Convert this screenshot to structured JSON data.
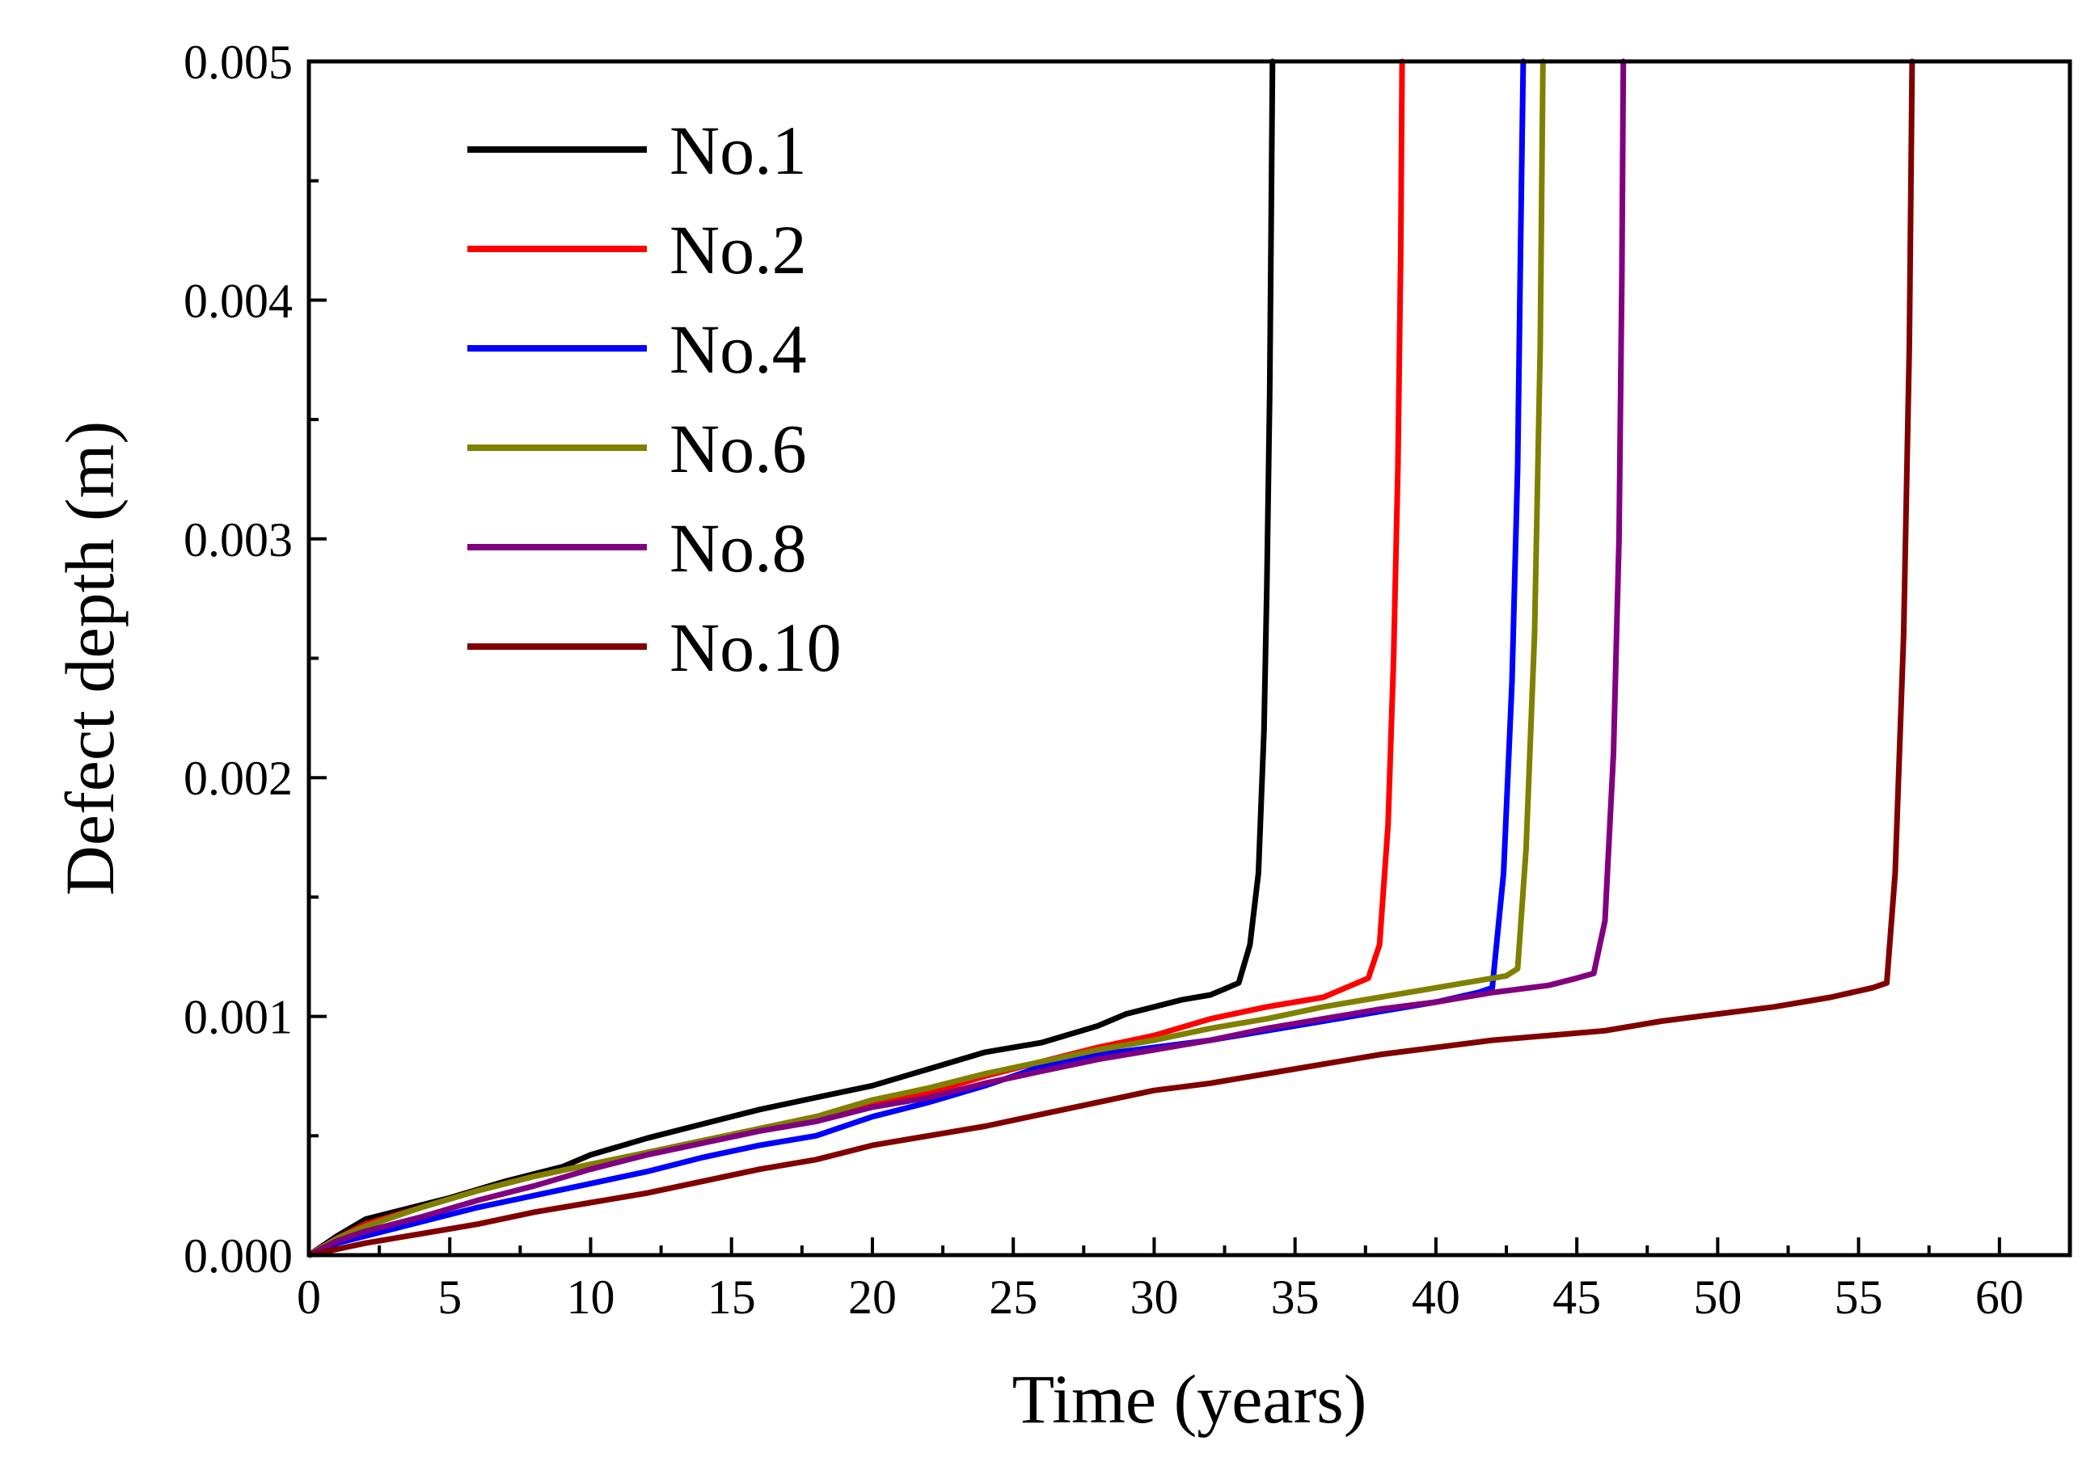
{
  "chart_data": {
    "type": "line",
    "title": "",
    "xlabel": "Time (years)",
    "ylabel": "Defect depth (m)",
    "xlim": [
      0,
      62.5
    ],
    "ylim": [
      0,
      0.005
    ],
    "x_ticks": [
      0,
      5,
      10,
      15,
      20,
      25,
      30,
      35,
      40,
      45,
      50,
      55,
      60
    ],
    "x_tick_labels": [
      "0",
      "5",
      "10",
      "15",
      "20",
      "25",
      "30",
      "35",
      "40",
      "45",
      "50",
      "55",
      "60"
    ],
    "y_ticks": [
      0,
      0.001,
      0.002,
      0.003,
      0.004,
      0.005
    ],
    "y_tick_labels": [
      "0.000",
      "0.001",
      "0.002",
      "0.003",
      "0.004",
      "0.005"
    ],
    "x_minor_step": 2.5,
    "y_minor_step": 0.0005,
    "legend_position": "top-left",
    "grid": false,
    "series": [
      {
        "name": "No.1",
        "color": "#000000",
        "x": [
          0,
          1,
          2,
          3,
          5,
          7,
          9,
          10,
          12,
          14,
          16,
          18,
          20,
          22,
          24,
          26,
          28,
          29,
          30,
          31,
          32,
          32.6,
          33.0,
          33.4,
          33.7,
          33.9,
          34.0,
          34.1,
          34.15,
          34.2
        ],
        "y": [
          0,
          8e-05,
          0.00015,
          0.00018,
          0.00024,
          0.00031,
          0.00037,
          0.00042,
          0.00049,
          0.00055,
          0.00061,
          0.00066,
          0.00071,
          0.00078,
          0.00085,
          0.00089,
          0.00096,
          0.00101,
          0.00104,
          0.00107,
          0.00109,
          0.00112,
          0.00114,
          0.0013,
          0.0016,
          0.0022,
          0.0028,
          0.0036,
          0.0043,
          0.005
        ]
      },
      {
        "name": "No.2",
        "color": "#ff0000",
        "x": [
          0,
          1,
          2,
          4,
          6,
          8,
          10,
          12,
          14,
          16,
          18,
          20,
          22,
          24,
          26,
          28,
          30,
          32,
          34,
          36,
          37.0,
          37.6,
          38.0,
          38.3,
          38.5,
          38.65,
          38.75,
          38.8
        ],
        "y": [
          0,
          7e-05,
          0.00013,
          0.0002,
          0.00027,
          0.00033,
          0.00038,
          0.00043,
          0.00048,
          0.00053,
          0.00058,
          0.00063,
          0.00068,
          0.00075,
          0.00081,
          0.00087,
          0.00092,
          0.00099,
          0.00104,
          0.00108,
          0.00113,
          0.00116,
          0.0013,
          0.0018,
          0.0025,
          0.0033,
          0.0042,
          0.005
        ]
      },
      {
        "name": "No.4",
        "color": "#0000ff",
        "x": [
          0,
          1,
          2,
          4,
          6,
          8,
          10,
          12,
          14,
          16,
          18,
          20,
          22,
          24,
          26,
          28,
          30,
          32,
          34,
          36,
          38,
          40,
          41.5,
          42.0,
          42.4,
          42.7,
          42.9,
          43.0,
          43.1
        ],
        "y": [
          0,
          5e-05,
          8e-05,
          0.00014,
          0.0002,
          0.00025,
          0.0003,
          0.00035,
          0.00041,
          0.00046,
          0.0005,
          0.00058,
          0.00064,
          0.00071,
          0.00079,
          0.00084,
          0.00087,
          0.0009,
          0.00094,
          0.00098,
          0.00102,
          0.00106,
          0.0011,
          0.00112,
          0.0016,
          0.0024,
          0.0033,
          0.0042,
          0.005
        ]
      },
      {
        "name": "No.6",
        "color": "#808000",
        "x": [
          0,
          1,
          2,
          4,
          6,
          8,
          10,
          12,
          14,
          16,
          18,
          20,
          22,
          24,
          26,
          28,
          30,
          32,
          34,
          36,
          38,
          40,
          41.5,
          42.5,
          42.9,
          43.2,
          43.5,
          43.7,
          43.8
        ],
        "y": [
          0,
          7e-05,
          0.00012,
          0.0002,
          0.00027,
          0.00033,
          0.00038,
          0.00043,
          0.00048,
          0.00053,
          0.00058,
          0.00065,
          0.0007,
          0.00076,
          0.00081,
          0.00086,
          0.0009,
          0.00095,
          0.00099,
          0.00104,
          0.00108,
          0.00112,
          0.00115,
          0.00117,
          0.0012,
          0.0017,
          0.0026,
          0.0038,
          0.005
        ]
      },
      {
        "name": "No.8",
        "color": "#800080",
        "x": [
          0,
          1,
          2,
          4,
          6,
          8,
          10,
          12,
          14,
          16,
          18,
          20,
          22,
          24,
          26,
          28,
          30,
          32,
          34,
          36,
          38,
          40,
          42,
          44,
          45.0,
          45.6,
          46.0,
          46.3,
          46.5,
          46.6,
          46.65
        ],
        "y": [
          0,
          6e-05,
          0.0001,
          0.00016,
          0.00023,
          0.00029,
          0.00036,
          0.00042,
          0.00047,
          0.00052,
          0.00056,
          0.00062,
          0.00066,
          0.00072,
          0.00077,
          0.00082,
          0.00086,
          0.0009,
          0.00095,
          0.00099,
          0.00103,
          0.00106,
          0.0011,
          0.00113,
          0.00116,
          0.00118,
          0.0014,
          0.0021,
          0.003,
          0.0041,
          0.005
        ]
      },
      {
        "name": "No.10",
        "color": "#800000",
        "x": [
          0,
          2,
          4,
          6,
          8,
          10,
          12,
          14,
          16,
          18,
          20,
          22,
          24,
          26,
          28,
          30,
          32,
          34,
          36,
          38,
          40,
          42,
          44,
          46,
          48,
          50,
          52,
          54,
          55.5,
          56.0,
          56.3,
          56.6,
          56.8,
          56.9
        ],
        "y": [
          0,
          5e-05,
          9e-05,
          0.00013,
          0.00018,
          0.00022,
          0.00026,
          0.00031,
          0.00036,
          0.0004,
          0.00046,
          0.0005,
          0.00054,
          0.00059,
          0.00064,
          0.00069,
          0.00072,
          0.00076,
          0.0008,
          0.00084,
          0.00087,
          0.0009,
          0.00092,
          0.00094,
          0.00098,
          0.00101,
          0.00104,
          0.00108,
          0.00112,
          0.00114,
          0.0016,
          0.0026,
          0.0038,
          0.005
        ]
      }
    ]
  }
}
